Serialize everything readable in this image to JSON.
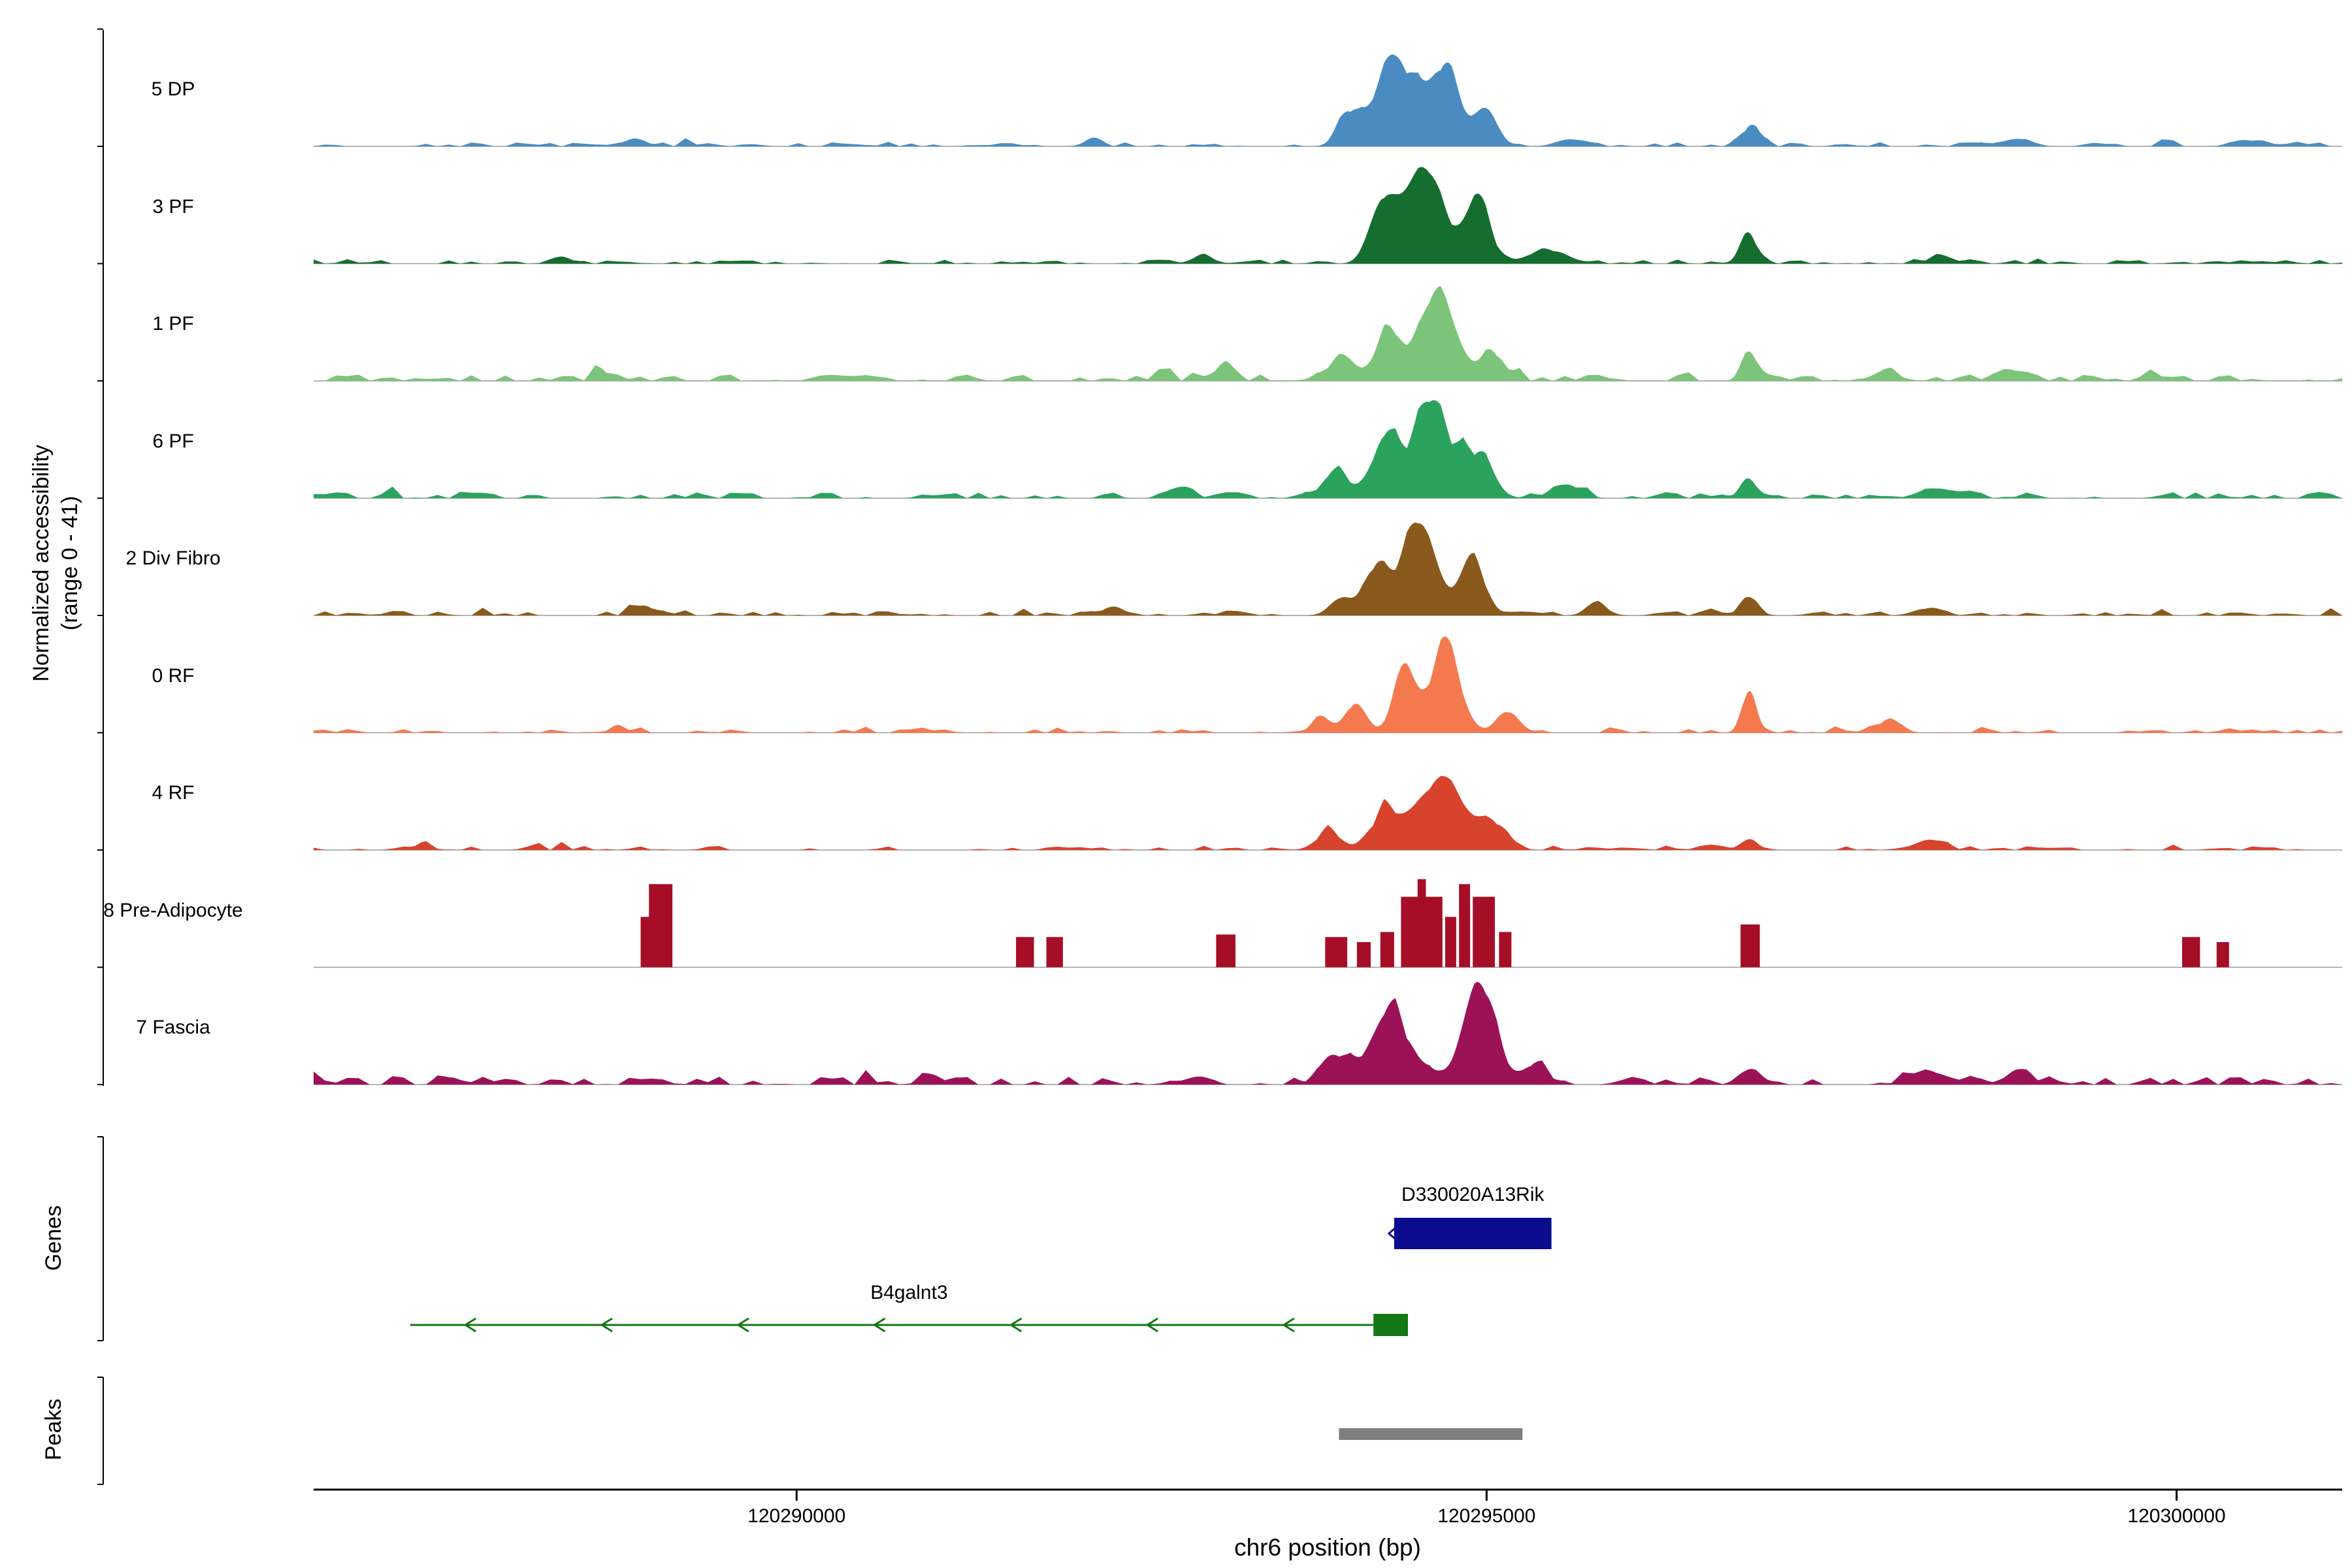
{
  "figure": {
    "background": "#ffffff"
  },
  "axes": {
    "y_label_line1": "Normalized accessibility",
    "y_label_line2": "(range 0 - 41)",
    "x_label": "chr6 position (bp)",
    "x_ticks": [
      {
        "bp": 120290000,
        "label": "120290000"
      },
      {
        "bp": 120295000,
        "label": "120295000"
      },
      {
        "bp": 120300000,
        "label": "120300000"
      }
    ]
  },
  "sections": {
    "genes_label": "Genes",
    "peaks_label": "Peaks"
  },
  "chart_data": {
    "type": "area",
    "subtype": "genome-coverage-tracks",
    "x_units": "chr6 position (bp)",
    "xlim": [
      120286500,
      120301200
    ],
    "ylim": [
      0,
      41
    ],
    "x_tick_values": [
      120290000,
      120295000,
      120300000
    ],
    "tracks": [
      {
        "name": "5 DP",
        "color": "#4a8cc2",
        "noise": 1.1,
        "peaks": [
          [
            120294350,
            140,
            37
          ],
          [
            120294700,
            100,
            33
          ],
          [
            120294000,
            80,
            12
          ],
          [
            120295000,
            80,
            15
          ],
          [
            120296900,
            60,
            8
          ],
          [
            120288850,
            60,
            2.5
          ],
          [
            120292150,
            60,
            3
          ],
          [
            120295600,
            100,
            2.5
          ],
          [
            120300550,
            120,
            2.5
          ],
          [
            120298800,
            120,
            2
          ]
        ]
      },
      {
        "name": "3 PF",
        "color": "#156e2f",
        "noise": 1.1,
        "peaks": [
          [
            120294550,
            150,
            39
          ],
          [
            120294250,
            90,
            24
          ],
          [
            120294950,
            90,
            22
          ],
          [
            120295450,
            120,
            6
          ],
          [
            120296900,
            60,
            12
          ],
          [
            120292950,
            80,
            3
          ],
          [
            120298300,
            100,
            2.5
          ],
          [
            120288300,
            80,
            2
          ]
        ]
      },
      {
        "name": "1 PF",
        "color": "#7cc47a",
        "noise": 1.7,
        "peaks": [
          [
            120294650,
            130,
            35
          ],
          [
            120294300,
            100,
            20
          ],
          [
            120293950,
            100,
            9
          ],
          [
            120295050,
            80,
            12
          ],
          [
            120296900,
            55,
            10
          ],
          [
            120297900,
            90,
            4
          ],
          [
            120293100,
            70,
            5
          ],
          [
            120288600,
            60,
            2.5
          ],
          [
            120298800,
            120,
            3
          ]
        ]
      },
      {
        "name": "6 PF",
        "color": "#2ca25f",
        "noise": 1.7,
        "peaks": [
          [
            120294600,
            150,
            38
          ],
          [
            120294250,
            90,
            23
          ],
          [
            120294950,
            100,
            16
          ],
          [
            120293900,
            100,
            9
          ],
          [
            120296900,
            60,
            7
          ],
          [
            120295600,
            90,
            5
          ],
          [
            120298300,
            120,
            3
          ],
          [
            120292800,
            80,
            3
          ]
        ]
      },
      {
        "name": "2 Div Fibro",
        "color": "#8a5a1c",
        "noise": 1.2,
        "peaks": [
          [
            120294500,
            130,
            35
          ],
          [
            120294200,
            80,
            20
          ],
          [
            120294900,
            90,
            21
          ],
          [
            120295800,
            80,
            4
          ],
          [
            120296900,
            70,
            5
          ],
          [
            120288900,
            70,
            3.5
          ],
          [
            120293950,
            80,
            7
          ],
          [
            120298200,
            100,
            3
          ],
          [
            120292300,
            80,
            3
          ]
        ]
      },
      {
        "name": "0 RF",
        "color": "#f4794e",
        "noise": 1.0,
        "peaks": [
          [
            120294700,
            110,
            34
          ],
          [
            120294400,
            80,
            23
          ],
          [
            120294050,
            70,
            13
          ],
          [
            120295150,
            80,
            9
          ],
          [
            120296900,
            50,
            16
          ],
          [
            120297900,
            80,
            5
          ],
          [
            120293800,
            70,
            6
          ],
          [
            120288700,
            60,
            2
          ]
        ]
      },
      {
        "name": "4 RF",
        "color": "#d8432e",
        "noise": 1.2,
        "peaks": [
          [
            120294650,
            180,
            27
          ],
          [
            120294250,
            100,
            14
          ],
          [
            120295050,
            100,
            10
          ],
          [
            120293850,
            90,
            7
          ],
          [
            120296900,
            60,
            4
          ],
          [
            120298200,
            110,
            3.5
          ],
          [
            120287300,
            60,
            2
          ]
        ]
      },
      {
        "name": "8 Pre-Adipocyte",
        "color": "#a60e27",
        "noise": 0,
        "blocks": [
          [
            120288870,
            120288930,
            20
          ],
          [
            120288930,
            120289100,
            33
          ],
          [
            120291590,
            120291720,
            12
          ],
          [
            120291810,
            120291930,
            12
          ],
          [
            120293040,
            120293180,
            13
          ],
          [
            120293830,
            120293990,
            12
          ],
          [
            120294060,
            120294160,
            10
          ],
          [
            120294230,
            120294330,
            14
          ],
          [
            120294380,
            120294500,
            28
          ],
          [
            120294500,
            120294560,
            35
          ],
          [
            120294560,
            120294680,
            28
          ],
          [
            120294700,
            120294780,
            20
          ],
          [
            120294800,
            120294880,
            33
          ],
          [
            120294900,
            120295060,
            28
          ],
          [
            120295090,
            120295180,
            14
          ],
          [
            120296840,
            120296980,
            17
          ],
          [
            120300040,
            120300170,
            12
          ],
          [
            120300290,
            120300380,
            10
          ]
        ]
      },
      {
        "name": "7 Fascia",
        "color": "#9c1257",
        "noise": 2.1,
        "peaks": [
          [
            120294950,
            120,
            37
          ],
          [
            120294300,
            140,
            29
          ],
          [
            120293900,
            100,
            11
          ],
          [
            120295350,
            90,
            8
          ],
          [
            120296900,
            80,
            5
          ],
          [
            120298250,
            130,
            4
          ],
          [
            120298850,
            110,
            4
          ],
          [
            120287500,
            80,
            2.5
          ],
          [
            120291000,
            100,
            2.5
          ],
          [
            120292900,
            90,
            3
          ]
        ]
      }
    ],
    "genes": [
      {
        "name": "D330020A13Rik",
        "color": "#0b0b8e",
        "start": 120294330,
        "end": 120295470,
        "strand": "-",
        "row": 0,
        "style": "box"
      },
      {
        "name": "B4galnt3",
        "color": "#147814",
        "start": 120287200,
        "end": 120294430,
        "strand": "-",
        "row": 1,
        "style": "line",
        "exon": [
          120294180,
          120294430
        ],
        "arrow_count": 7
      }
    ],
    "peak_regions": [
      {
        "start": 120293930,
        "end": 120295260,
        "color": "#7f7f7f"
      }
    ]
  }
}
